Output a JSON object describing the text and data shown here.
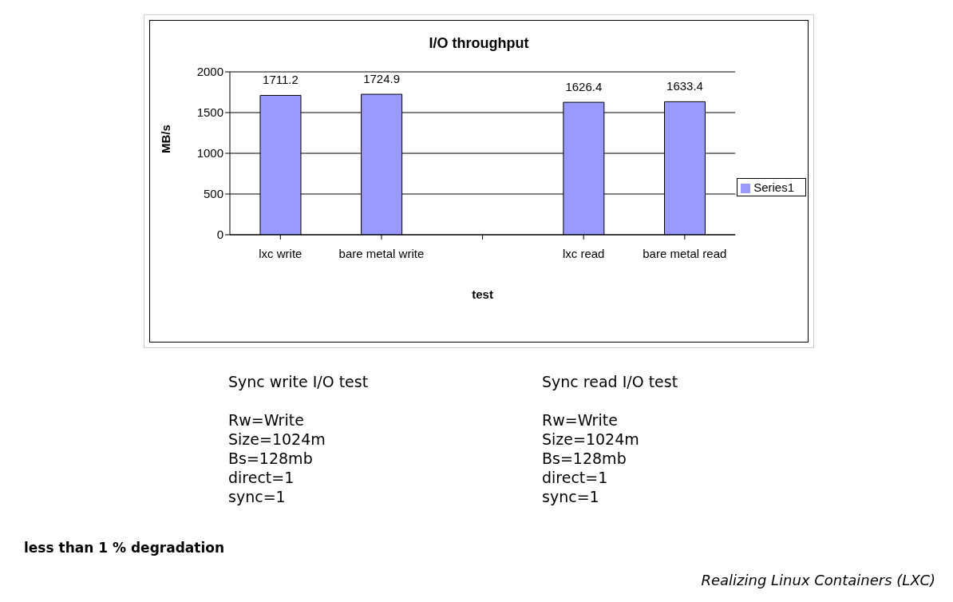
{
  "chart_data": {
    "type": "bar",
    "title": "I/O throughput",
    "xlabel": "test",
    "ylabel": "MB/s",
    "categories": [
      "lxc write",
      "bare metal write",
      null,
      "lxc read",
      "bare metal read"
    ],
    "series": [
      {
        "name": "Series1",
        "color": "#9999ff",
        "values": [
          1711.2,
          1724.9,
          null,
          1626.4,
          1633.4
        ]
      }
    ],
    "ylim": [
      0,
      2000
    ],
    "yticks": [
      0,
      500,
      1000,
      1500,
      2000
    ],
    "grid": "y",
    "legend": "right",
    "data_labels": true,
    "annotations": [
      "Sync write I/O test\n\nRw=Write\nSize=1024m\nBs=128mb\ndirect=1\nsync=1",
      "Sync read I/O test\n\nRw=Write\nSize=1024m\nBs=128mb\ndirect=1\nsync=1",
      "less than 1 % degradation",
      "Realizing Linux Containers (LXC)"
    ]
  }
}
